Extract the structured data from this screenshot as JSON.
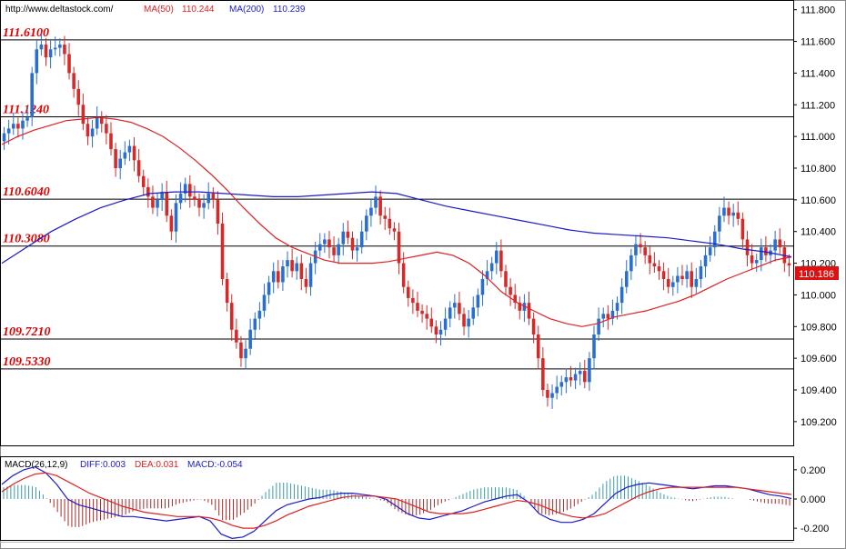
{
  "header": {
    "url": "http://www.deltastock.com/",
    "ma50_label": "MA(50)",
    "ma50_value": "110.244",
    "ma200_label": "MA(200)",
    "ma200_value": "110.239"
  },
  "macd_header": {
    "label": "MACD(26,12,9)",
    "diff": "DIFF:0.003",
    "dea": "DEA:0.031",
    "macd": "MACD:-0.054"
  },
  "colors": {
    "up": "#2a6fcf",
    "down": "#d62a2a",
    "ma50": "#e02020",
    "ma200": "#1a1acc",
    "level_text": "#e00000",
    "price_tag": "#dd1111"
  },
  "chart_data": [
    {
      "type": "candlestick",
      "title": "",
      "y_ticks": [
        "111.800",
        "111.600",
        "111.400",
        "111.200",
        "111.000",
        "110.800",
        "110.600",
        "110.400",
        "110.200",
        "110.000",
        "109.800",
        "109.600",
        "109.400",
        "109.200"
      ],
      "ylim": [
        109.05,
        111.85
      ],
      "levels": [
        "111.6100",
        "111.1240",
        "110.6040",
        "110.3080",
        "109.7210",
        "109.5330"
      ],
      "current_price": "110.186",
      "close": [
        111.02,
        111.05,
        111.08,
        111.05,
        111.1,
        111.12,
        111.4,
        111.55,
        111.58,
        111.5,
        111.55,
        111.56,
        111.58,
        111.52,
        111.4,
        111.3,
        111.2,
        111.08,
        111.0,
        111.05,
        111.12,
        111.08,
        111.02,
        110.92,
        110.8,
        110.86,
        110.9,
        110.94,
        110.85,
        110.75,
        110.68,
        110.62,
        110.55,
        110.6,
        110.65,
        110.5,
        110.4,
        110.58,
        110.64,
        110.7,
        110.62,
        110.6,
        110.55,
        110.58,
        110.64,
        110.6,
        110.45,
        110.1,
        109.95,
        109.78,
        109.7,
        109.6,
        109.66,
        109.78,
        109.85,
        109.9,
        110.0,
        110.08,
        110.15,
        110.08,
        110.18,
        110.22,
        110.15,
        110.2,
        110.1,
        110.05,
        110.2,
        110.28,
        110.32,
        110.35,
        110.3,
        110.25,
        110.32,
        110.4,
        110.36,
        110.28,
        110.3,
        110.4,
        110.5,
        110.55,
        110.62,
        110.5,
        110.48,
        110.42,
        110.4,
        110.2,
        110.05,
        109.98,
        109.95,
        109.9,
        109.88,
        109.85,
        109.8,
        109.75,
        109.78,
        109.85,
        109.92,
        109.95,
        109.88,
        109.8,
        109.85,
        109.92,
        110.0,
        110.1,
        110.15,
        110.2,
        110.28,
        110.15,
        110.05,
        110.0,
        109.95,
        109.9,
        109.95,
        109.85,
        109.75,
        109.6,
        109.4,
        109.35,
        109.38,
        109.42,
        109.45,
        109.48,
        109.46,
        109.5,
        109.52,
        109.45,
        109.6,
        109.75,
        109.85,
        109.88,
        109.85,
        109.9,
        109.95,
        110.05,
        110.15,
        110.25,
        110.32,
        110.3,
        110.25,
        110.2,
        110.18,
        110.15,
        110.1,
        110.05,
        110.08,
        110.12,
        110.1,
        110.15,
        110.05,
        110.1,
        110.18,
        110.25,
        110.3,
        110.4,
        110.5,
        110.55,
        110.5,
        110.52,
        110.48,
        110.35,
        110.25,
        110.2,
        110.22,
        110.3,
        110.25,
        110.28,
        110.35,
        110.3,
        110.2,
        110.186
      ],
      "ma50": [
        110.95,
        111.0,
        111.04,
        111.07,
        111.1,
        111.11,
        111.12,
        111.11,
        111.09,
        111.05,
        111.0,
        110.93,
        110.85,
        110.76,
        110.66,
        110.55,
        110.45,
        110.36,
        110.3,
        110.26,
        110.22,
        110.2,
        110.2,
        110.2,
        110.21,
        110.23,
        110.25,
        110.27,
        110.25,
        110.2,
        110.12,
        110.02,
        109.95,
        109.9,
        109.85,
        109.82,
        109.8,
        109.82,
        109.86,
        109.88,
        109.9,
        109.93,
        109.96,
        110.0,
        110.05,
        110.1,
        110.14,
        110.18,
        110.22,
        110.24
      ],
      "ma200": [
        110.2,
        110.3,
        110.4,
        110.48,
        110.55,
        110.6,
        110.64,
        110.65,
        110.65,
        110.64,
        110.63,
        110.62,
        110.62,
        110.63,
        110.64,
        110.65,
        110.64,
        110.6,
        110.56,
        110.53,
        110.5,
        110.47,
        110.44,
        110.41,
        110.39,
        110.38,
        110.37,
        110.36,
        110.34,
        110.32,
        110.29,
        110.27,
        110.24
      ],
      "levels_note_ma": "MA(50) 110.244, MA(200) 110.239"
    },
    {
      "type": "macd",
      "y_ticks": [
        "0.200",
        "0.000",
        "-0.200"
      ],
      "ylim": [
        -0.28,
        0.28
      ],
      "diff": [
        0.1,
        0.16,
        0.2,
        0.22,
        0.18,
        0.1,
        0.0,
        -0.04,
        -0.06,
        -0.08,
        -0.1,
        -0.12,
        -0.12,
        -0.13,
        -0.14,
        -0.15,
        -0.14,
        -0.13,
        -0.12,
        -0.15,
        -0.24,
        -0.27,
        -0.26,
        -0.22,
        -0.15,
        -0.08,
        -0.04,
        -0.02,
        0.0,
        0.01,
        0.03,
        0.04,
        0.04,
        0.03,
        0.02,
        0.0,
        -0.05,
        -0.1,
        -0.13,
        -0.14,
        -0.12,
        -0.1,
        -0.08,
        -0.05,
        -0.02,
        0.0,
        0.02,
        0.03,
        -0.02,
        -0.1,
        -0.14,
        -0.16,
        -0.16,
        -0.14,
        -0.1,
        -0.03,
        0.04,
        0.08,
        0.1,
        0.11,
        0.1,
        0.09,
        0.08,
        0.07,
        0.08,
        0.09,
        0.09,
        0.08,
        0.07,
        0.05,
        0.03,
        0.02,
        0.003
      ],
      "dea": [
        0.05,
        0.1,
        0.14,
        0.17,
        0.18,
        0.16,
        0.12,
        0.08,
        0.04,
        0.01,
        -0.02,
        -0.05,
        -0.07,
        -0.09,
        -0.1,
        -0.11,
        -0.12,
        -0.12,
        -0.12,
        -0.13,
        -0.15,
        -0.18,
        -0.2,
        -0.2,
        -0.18,
        -0.15,
        -0.11,
        -0.08,
        -0.05,
        -0.03,
        -0.01,
        0.01,
        0.02,
        0.02,
        0.02,
        0.01,
        0.0,
        -0.03,
        -0.06,
        -0.09,
        -0.1,
        -0.1,
        -0.1,
        -0.09,
        -0.07,
        -0.05,
        -0.03,
        -0.01,
        -0.02,
        -0.04,
        -0.07,
        -0.1,
        -0.12,
        -0.13,
        -0.12,
        -0.1,
        -0.06,
        -0.02,
        0.02,
        0.05,
        0.07,
        0.08,
        0.08,
        0.08,
        0.08,
        0.08,
        0.08,
        0.08,
        0.07,
        0.06,
        0.05,
        0.04,
        0.031
      ]
    }
  ]
}
